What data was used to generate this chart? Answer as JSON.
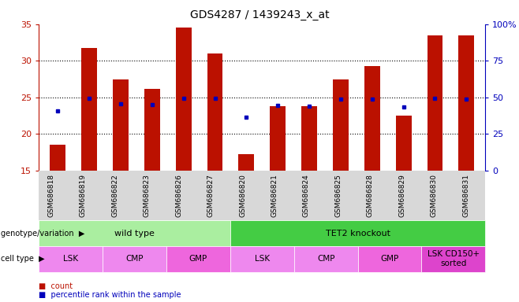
{
  "title": "GDS4287 / 1439243_x_at",
  "samples": [
    "GSM686818",
    "GSM686819",
    "GSM686822",
    "GSM686823",
    "GSM686826",
    "GSM686827",
    "GSM686820",
    "GSM686821",
    "GSM686824",
    "GSM686825",
    "GSM686828",
    "GSM686829",
    "GSM686830",
    "GSM686831"
  ],
  "bar_values": [
    18.5,
    31.7,
    27.5,
    26.2,
    34.5,
    31.0,
    17.2,
    23.8,
    23.8,
    27.5,
    29.3,
    22.5,
    33.5,
    33.5
  ],
  "dot_values": [
    23.2,
    24.9,
    24.1,
    24.0,
    24.9,
    24.9,
    22.3,
    23.9,
    23.8,
    24.8,
    24.8,
    23.7,
    24.9,
    24.8
  ],
  "ymin": 15,
  "ymax": 35,
  "yticks_left": [
    15,
    20,
    25,
    30,
    35
  ],
  "right_tick_values": [
    0,
    25,
    50,
    75,
    100
  ],
  "right_tick_labels": [
    "0",
    "25",
    "50",
    "75",
    "100%"
  ],
  "bar_color": "#bb1100",
  "dot_color": "#0000bb",
  "genotype_groups": [
    {
      "label": "wild type",
      "start": 0,
      "end": 6,
      "color": "#aaeea0"
    },
    {
      "label": "TET2 knockout",
      "start": 6,
      "end": 14,
      "color": "#44cc44"
    }
  ],
  "cell_type_groups": [
    {
      "label": "LSK",
      "start": 0,
      "end": 2,
      "color": "#ee88ee"
    },
    {
      "label": "CMP",
      "start": 2,
      "end": 4,
      "color": "#ee88ee"
    },
    {
      "label": "GMP",
      "start": 4,
      "end": 6,
      "color": "#ee66dd"
    },
    {
      "label": "LSK",
      "start": 6,
      "end": 8,
      "color": "#ee88ee"
    },
    {
      "label": "CMP",
      "start": 8,
      "end": 10,
      "color": "#ee88ee"
    },
    {
      "label": "GMP",
      "start": 10,
      "end": 12,
      "color": "#ee66dd"
    },
    {
      "label": "LSK CD150+\nsorted",
      "start": 12,
      "end": 14,
      "color": "#dd44cc"
    }
  ],
  "legend_count_color": "#bb1100",
  "legend_dot_color": "#0000bb",
  "label_genotype": "genotype/variation",
  "label_celltype": "cell type",
  "grid_dotted_values": [
    20,
    25,
    30
  ],
  "xticklabel_bg": "#d8d8d8"
}
